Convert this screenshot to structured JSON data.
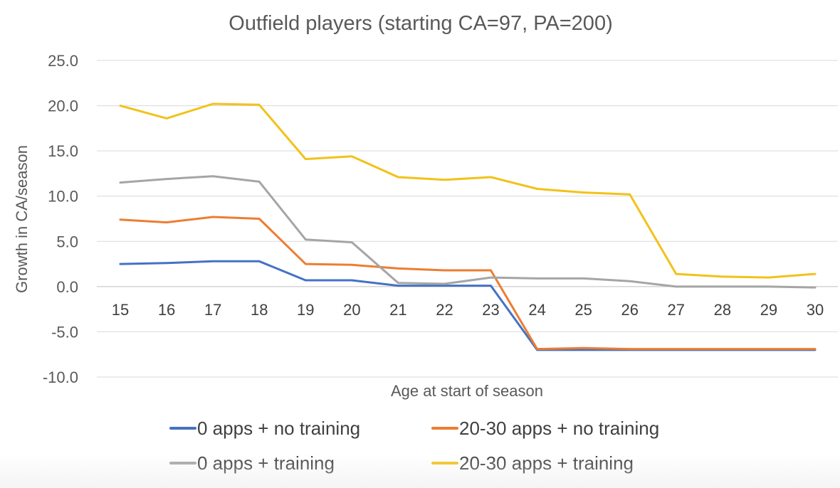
{
  "chart_data": {
    "type": "line",
    "title": "Outfield players (starting CA=97, PA=200)",
    "xlabel": "Age at start of season",
    "ylabel": "Growth in CA/season",
    "ylim": [
      -10,
      25
    ],
    "yticks": [
      "25.0",
      "20.0",
      "15.0",
      "10.0",
      "5.0",
      "0.0",
      "-5.0",
      "-10.0"
    ],
    "ytick_values": [
      25,
      20,
      15,
      10,
      5,
      0,
      -5,
      -10
    ],
    "categories": [
      "15",
      "16",
      "17",
      "18",
      "19",
      "20",
      "21",
      "22",
      "23",
      "24",
      "25",
      "26",
      "27",
      "28",
      "29",
      "30"
    ],
    "grid": true,
    "legend_position": "bottom",
    "series": [
      {
        "name": "0 apps + no training",
        "color": "#4472c4",
        "values": [
          2.5,
          2.6,
          2.8,
          2.8,
          0.7,
          0.7,
          0.1,
          0.1,
          0.1,
          -7.0,
          -7.0,
          -7.0,
          -7.0,
          -7.0,
          -7.0,
          -7.0
        ]
      },
      {
        "name": "20-30 apps + no training",
        "color": "#ed7d31",
        "values": [
          7.4,
          7.1,
          7.7,
          7.5,
          2.5,
          2.4,
          2.0,
          1.8,
          1.8,
          -6.9,
          -6.8,
          -6.9,
          -6.9,
          -6.9,
          -6.9,
          -6.9
        ]
      },
      {
        "name": "0 apps + training",
        "color": "#a5a5a5",
        "values": [
          11.5,
          11.9,
          12.2,
          11.6,
          5.2,
          4.9,
          0.4,
          0.3,
          1.0,
          0.9,
          0.9,
          0.6,
          0.0,
          0.0,
          0.0,
          -0.1
        ]
      },
      {
        "name": "20-30 apps + training",
        "color": "#f2c21a",
        "values": [
          20.0,
          18.6,
          20.2,
          20.1,
          14.1,
          14.4,
          12.1,
          11.8,
          12.1,
          10.8,
          10.4,
          10.2,
          1.4,
          1.1,
          1.0,
          1.4
        ]
      }
    ]
  }
}
